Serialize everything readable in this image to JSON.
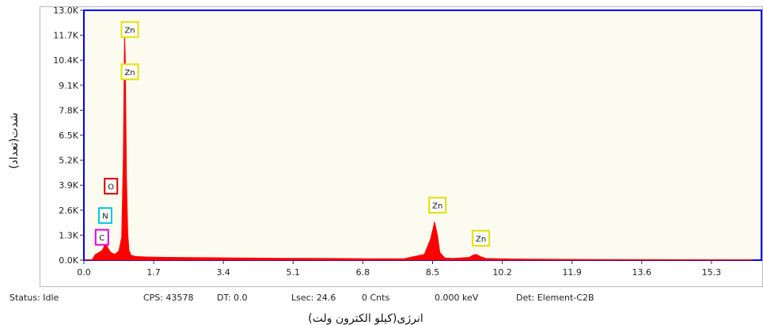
{
  "chart_data": {
    "type": "line",
    "title": "",
    "xlabel": "انرژی(کیلو الکترون ولت)",
    "ylabel": "شدت(تعداد)",
    "xlim": [
      0.0,
      16.3
    ],
    "ylim": [
      0,
      13000
    ],
    "x_ticks": [
      "0.0",
      "1.7",
      "3.4",
      "5.1",
      "6.8",
      "8.5",
      "10.2",
      "11.9",
      "13.6",
      "15.3"
    ],
    "y_ticks": [
      "0.0K",
      "1.3K",
      "2.6K",
      "3.9K",
      "5.2K",
      "6.5K",
      "7.8K",
      "9.1K",
      "10.4K",
      "11.7K",
      "13.0K"
    ],
    "series": [
      {
        "color": "#ff0000",
        "x": [
          0.0,
          0.2,
          0.28,
          0.35,
          0.45,
          0.5,
          0.53,
          0.58,
          0.65,
          0.75,
          0.85,
          0.92,
          0.96,
          0.99,
          1.01,
          1.04,
          1.07,
          1.1,
          1.15,
          1.25,
          1.5,
          2.0,
          3.0,
          4.0,
          5.0,
          6.0,
          7.0,
          7.8,
          8.3,
          8.45,
          8.55,
          8.62,
          8.68,
          8.8,
          9.0,
          9.4,
          9.5,
          9.57,
          9.65,
          9.8,
          10.5,
          12.0,
          14.0,
          16.3
        ],
        "y": [
          0,
          30,
          300,
          380,
          520,
          750,
          1100,
          650,
          420,
          300,
          480,
          1200,
          5500,
          11800,
          10700,
          4200,
          1400,
          520,
          260,
          200,
          170,
          150,
          130,
          110,
          100,
          90,
          80,
          80,
          300,
          1100,
          2000,
          1300,
          400,
          120,
          90,
          150,
          280,
          300,
          200,
          90,
          60,
          40,
          30,
          20
        ]
      }
    ],
    "annotations": [
      {
        "text": "Zn",
        "x": 1.12,
        "y": 12000,
        "color": "#e5e000"
      },
      {
        "text": "Zn",
        "x": 1.12,
        "y": 9800,
        "color": "#e5e000"
      },
      {
        "text": "O",
        "x": 0.66,
        "y": 3850,
        "color": "#e00000"
      },
      {
        "text": "N",
        "x": 0.52,
        "y": 2320,
        "color": "#00c8e0"
      },
      {
        "text": "C",
        "x": 0.44,
        "y": 1190,
        "color": "#e000e0"
      },
      {
        "text": "Zn",
        "x": 8.62,
        "y": 2860,
        "color": "#e5e000"
      },
      {
        "text": "Zn",
        "x": 9.68,
        "y": 1140,
        "color": "#e5e000"
      }
    ],
    "grid": false,
    "legend": "none"
  },
  "status_bar": {
    "status": "Status: Idle",
    "cps": "CPS: 43578",
    "dt": "DT: 0.0",
    "lsec": "Lsec: 24.6",
    "cnts": "0 Cnts",
    "kev": "0.000 keV",
    "det": "Det: Element-C2B"
  },
  "colors": {
    "plot_background": "#fbfbf0",
    "plot_border": "#0000ff",
    "spectrum": "#ff0000"
  }
}
